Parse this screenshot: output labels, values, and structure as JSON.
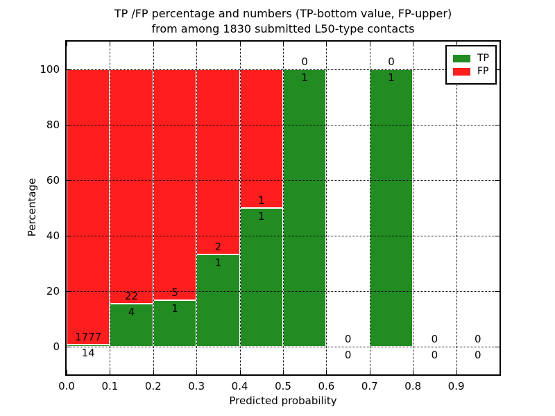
{
  "figure": {
    "title_line1": "TP /FP percentage and numbers (TP-bottom value, FP-upper)",
    "title_line2": "from among 1830 submitted L50-type contacts"
  },
  "axes": {
    "xlabel": "Predicted probability",
    "ylabel": "Percentage",
    "xtick_values": [
      0.0,
      0.1,
      0.2,
      0.3,
      0.4,
      0.5,
      0.6,
      0.7,
      0.8,
      0.9
    ],
    "xtick_labels": [
      "0.0",
      "0.1",
      "0.2",
      "0.3",
      "0.4",
      "0.5",
      "0.6",
      "0.7",
      "0.8",
      "0.9"
    ],
    "ytick_values": [
      0,
      20,
      40,
      60,
      80,
      100
    ],
    "ytick_labels": [
      "0",
      "20",
      "40",
      "60",
      "80",
      "100"
    ],
    "xlim": [
      0.0,
      1.0
    ],
    "ylim": [
      -10,
      110
    ],
    "grid": true
  },
  "legend": {
    "position": "upper right",
    "entries": [
      {
        "label": "TP",
        "color": "#228b22"
      },
      {
        "label": "FP",
        "color": "#ff1e1e"
      }
    ]
  },
  "chart_data": {
    "type": "bar",
    "variant": "stacked-percentage-histogram",
    "title": "TP /FP percentage and numbers (TP-bottom value, FP-upper) from among 1830 submitted L50-type contacts",
    "xlabel": "Predicted probability",
    "ylabel": "Percentage",
    "xlim": [
      0.0,
      1.0
    ],
    "ylim": [
      -10,
      110
    ],
    "grid": true,
    "legend_position": "upper right",
    "total_contacts": 1830,
    "bin_edges": [
      0.0,
      0.1,
      0.2,
      0.3,
      0.4,
      0.5,
      0.6,
      0.7,
      0.8,
      0.9,
      1.0
    ],
    "series": [
      {
        "name": "TP",
        "color": "#228b22",
        "counts": [
          14,
          4,
          1,
          1,
          1,
          1,
          0,
          1,
          0,
          0
        ]
      },
      {
        "name": "FP",
        "color": "#ff1e1e",
        "counts": [
          1777,
          22,
          5,
          2,
          1,
          0,
          0,
          0,
          0,
          0
        ]
      }
    ],
    "tp_percent_heights": [
      0.78,
      15.38,
      16.67,
      33.33,
      50.0,
      100.0,
      0,
      100.0,
      0,
      0
    ],
    "annotations": {
      "fp_labels": [
        "1777",
        "22",
        "5",
        "2",
        "1",
        "0",
        "0",
        "0",
        "0",
        "0"
      ],
      "tp_labels": [
        "14",
        "4",
        "1",
        "1",
        "1",
        "1",
        "0",
        "1",
        "0",
        "0"
      ]
    }
  }
}
